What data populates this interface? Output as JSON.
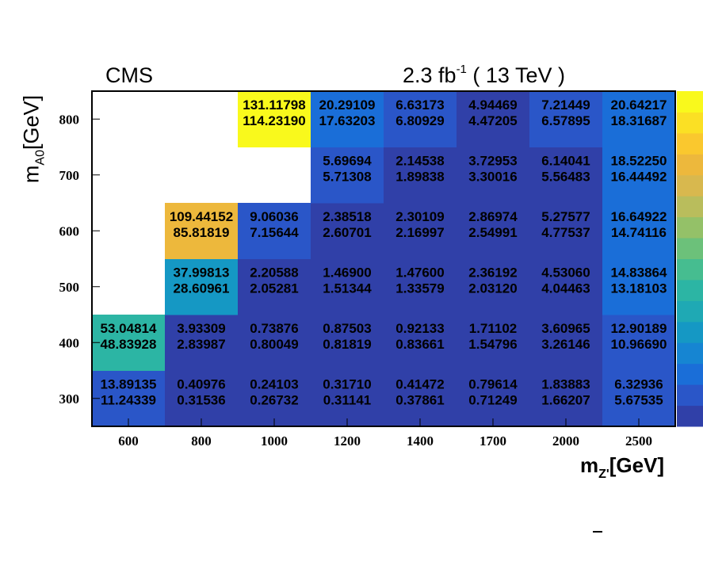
{
  "header": {
    "experiment": "CMS",
    "lumi_value": "2.3 fb",
    "lumi_exp": "-1",
    "energy": "( 13 TeV )"
  },
  "axes": {
    "x_main": "m",
    "x_sub": "Z'",
    "x_unit": "[GeV]",
    "y_main": "m",
    "y_sub": "A0",
    "y_unit": "[GeV]"
  },
  "chart_data": {
    "type": "heatmap",
    "x_categories": [
      "600",
      "800",
      "1000",
      "1200",
      "1400",
      "1700",
      "2000",
      "2500"
    ],
    "y_categories": [
      "300",
      "400",
      "500",
      "600",
      "700",
      "800"
    ],
    "z_scale": "linear",
    "colormap": "viridis-like (blue to yellow)",
    "cells": [
      {
        "x": "600",
        "y": "300",
        "v1": "13.89135",
        "v2": "11.24339",
        "level": 0.05
      },
      {
        "x": "800",
        "y": "300",
        "v1": "0.40976",
        "v2": "0.31536",
        "level": 0.0
      },
      {
        "x": "1000",
        "y": "300",
        "v1": "0.24103",
        "v2": "0.26732",
        "level": 0.0
      },
      {
        "x": "1200",
        "y": "300",
        "v1": "0.31710",
        "v2": "0.31141",
        "level": 0.0
      },
      {
        "x": "1400",
        "y": "300",
        "v1": "0.41472",
        "v2": "0.37861",
        "level": 0.0
      },
      {
        "x": "1700",
        "y": "300",
        "v1": "0.79614",
        "v2": "0.71249",
        "level": 0.0
      },
      {
        "x": "2000",
        "y": "300",
        "v1": "1.83883",
        "v2": "1.66207",
        "level": 0.0
      },
      {
        "x": "2500",
        "y": "300",
        "v1": "6.32936",
        "v2": "5.67535",
        "level": 0.05
      },
      {
        "x": "600",
        "y": "400",
        "v1": "53.04814",
        "v2": "48.83928",
        "level": 0.4
      },
      {
        "x": "800",
        "y": "400",
        "v1": "3.93309",
        "v2": "2.83987",
        "level": 0.0
      },
      {
        "x": "1000",
        "y": "400",
        "v1": "0.73876",
        "v2": "0.80049",
        "level": 0.0
      },
      {
        "x": "1200",
        "y": "400",
        "v1": "0.87503",
        "v2": "0.81819",
        "level": 0.0
      },
      {
        "x": "1400",
        "y": "400",
        "v1": "0.92133",
        "v2": "0.83661",
        "level": 0.0
      },
      {
        "x": "1700",
        "y": "400",
        "v1": "1.71102",
        "v2": "1.54796",
        "level": 0.0
      },
      {
        "x": "2000",
        "y": "400",
        "v1": "3.60965",
        "v2": "3.26146",
        "level": 0.0
      },
      {
        "x": "2500",
        "y": "400",
        "v1": "12.90189",
        "v2": "10.96690",
        "level": 0.05
      },
      {
        "x": "800",
        "y": "500",
        "v1": "37.99813",
        "v2": "28.60961",
        "level": 0.28
      },
      {
        "x": "1000",
        "y": "500",
        "v1": "2.20588",
        "v2": "2.05281",
        "level": 0.0
      },
      {
        "x": "1200",
        "y": "500",
        "v1": "1.46900",
        "v2": "1.51344",
        "level": 0.0
      },
      {
        "x": "1400",
        "y": "500",
        "v1": "1.47600",
        "v2": "1.33579",
        "level": 0.0
      },
      {
        "x": "1700",
        "y": "500",
        "v1": "2.36192",
        "v2": "2.03120",
        "level": 0.0
      },
      {
        "x": "2000",
        "y": "500",
        "v1": "4.53060",
        "v2": "4.04463",
        "level": 0.0
      },
      {
        "x": "2500",
        "y": "500",
        "v1": "14.83864",
        "v2": "13.18103",
        "level": 0.1
      },
      {
        "x": "800",
        "y": "600",
        "v1": "109.44152",
        "v2": "85.81819",
        "level": 0.8
      },
      {
        "x": "1000",
        "y": "600",
        "v1": "9.06036",
        "v2": "7.15644",
        "level": 0.05
      },
      {
        "x": "1200",
        "y": "600",
        "v1": "2.38518",
        "v2": "2.60701",
        "level": 0.0
      },
      {
        "x": "1400",
        "y": "600",
        "v1": "2.30109",
        "v2": "2.16997",
        "level": 0.0
      },
      {
        "x": "1700",
        "y": "600",
        "v1": "2.86974",
        "v2": "2.54991",
        "level": 0.0
      },
      {
        "x": "2000",
        "y": "600",
        "v1": "5.27577",
        "v2": "4.77537",
        "level": 0.0
      },
      {
        "x": "2500",
        "y": "600",
        "v1": "16.64922",
        "v2": "14.74116",
        "level": 0.1
      },
      {
        "x": "1200",
        "y": "700",
        "v1": "5.69694",
        "v2": "5.71308",
        "level": 0.05
      },
      {
        "x": "1400",
        "y": "700",
        "v1": "2.14538",
        "v2": "1.89838",
        "level": 0.0
      },
      {
        "x": "1700",
        "y": "700",
        "v1": "3.72953",
        "v2": "3.30016",
        "level": 0.0
      },
      {
        "x": "2000",
        "y": "700",
        "v1": "6.14041",
        "v2": "5.56483",
        "level": 0.0
      },
      {
        "x": "2500",
        "y": "700",
        "v1": "18.52250",
        "v2": "16.44492",
        "level": 0.1
      },
      {
        "x": "1000",
        "y": "800",
        "v1": "131.11798",
        "v2": "114.23190",
        "level": 1.0
      },
      {
        "x": "1200",
        "y": "800",
        "v1": "20.29109",
        "v2": "17.63203",
        "level": 0.1
      },
      {
        "x": "1400",
        "y": "800",
        "v1": "6.63173",
        "v2": "6.80929",
        "level": 0.05
      },
      {
        "x": "1700",
        "y": "800",
        "v1": "4.94469",
        "v2": "4.47205",
        "level": 0.0
      },
      {
        "x": "2000",
        "y": "800",
        "v1": "7.21449",
        "v2": "6.57895",
        "level": 0.05
      },
      {
        "x": "2500",
        "y": "800",
        "v1": "20.64217",
        "v2": "18.31687",
        "level": 0.1
      }
    ]
  },
  "palette": [
    "#3040a8",
    "#2a56c8",
    "#1a6ed8",
    "#1685d2",
    "#1598c4",
    "#1fa9b4",
    "#2cb5a4",
    "#46bd90",
    "#6cc17a",
    "#94c168",
    "#b9bd5c",
    "#d8b84e",
    "#edb83c",
    "#fac82e",
    "#fbe024",
    "#f9f91c"
  ]
}
